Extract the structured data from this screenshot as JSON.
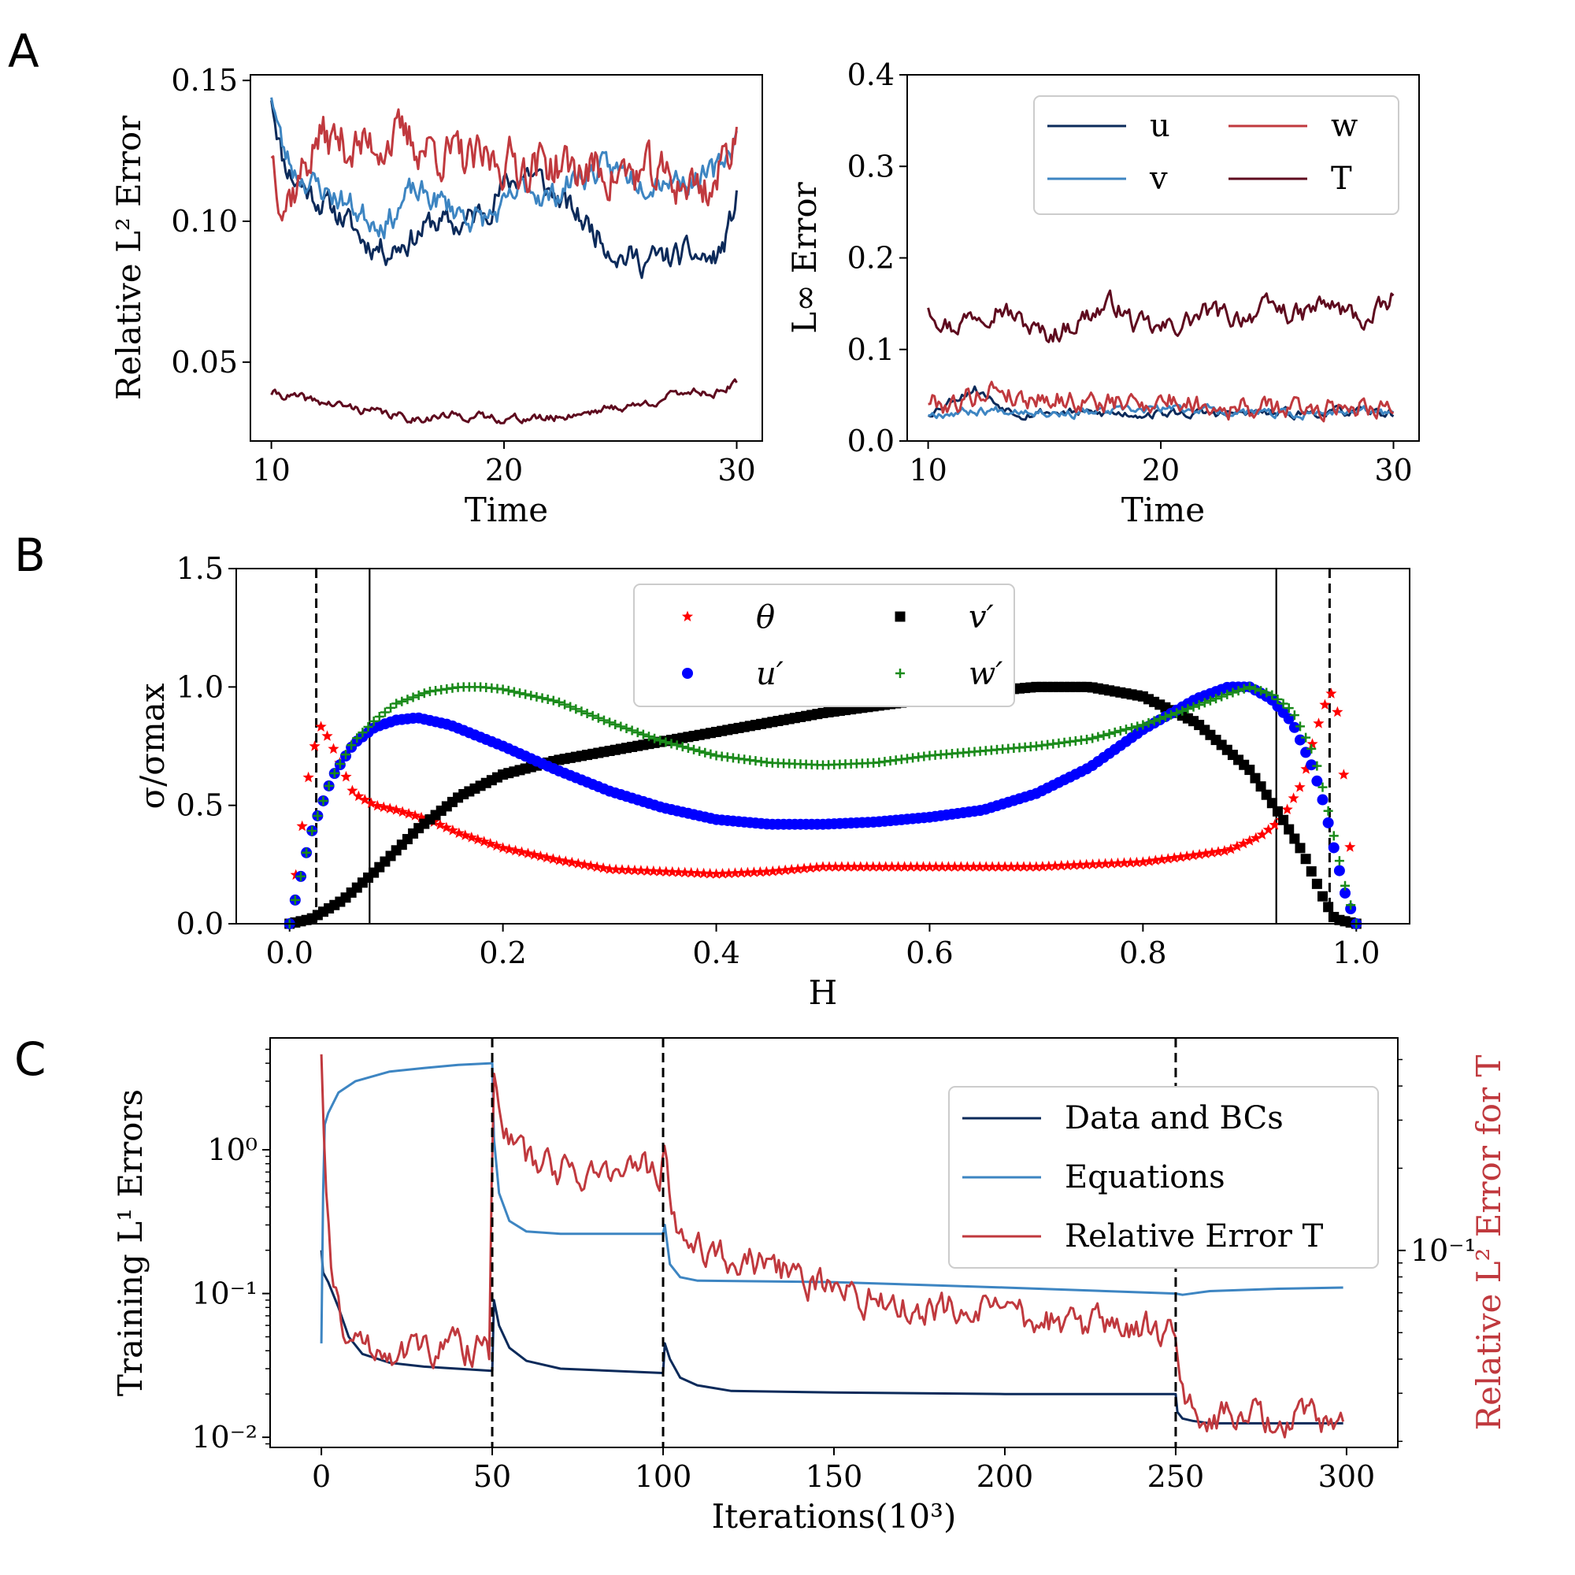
{
  "panels": {
    "a": "A",
    "b": "B",
    "c": "C"
  },
  "chart_data": [
    {
      "id": "A1",
      "type": "line",
      "xlabel": "Time",
      "ylabel": "Relative L² Error",
      "xlim": [
        9.1,
        31.1
      ],
      "ylim": [
        0.022,
        0.152
      ],
      "xticks": [
        10,
        20,
        30
      ],
      "xticklabels": [
        "10",
        "20",
        "30"
      ],
      "yticks": [
        0.05,
        0.1,
        0.15
      ],
      "yticklabels": [
        "0.05",
        "0.10",
        "0.15"
      ],
      "series": [
        {
          "name": "u",
          "color": "#0b2a5a",
          "noise": 0.004,
          "seed": 11,
          "x": [
            10,
            10.5,
            11,
            12,
            13,
            14,
            15,
            16,
            17,
            18,
            19,
            20,
            21,
            21.5,
            22,
            23,
            24,
            25,
            26,
            27,
            28,
            29,
            29.5,
            30
          ],
          "y": [
            0.145,
            0.122,
            0.115,
            0.108,
            0.102,
            0.093,
            0.09,
            0.094,
            0.1,
            0.098,
            0.103,
            0.112,
            0.118,
            0.115,
            0.11,
            0.103,
            0.096,
            0.088,
            0.086,
            0.087,
            0.088,
            0.086,
            0.092,
            0.108
          ]
        },
        {
          "name": "v",
          "color": "#3d85c2",
          "noise": 0.004,
          "seed": 23,
          "x": [
            10,
            10.5,
            11,
            12,
            13,
            14,
            15,
            16,
            17,
            18,
            19,
            20,
            21,
            22,
            23,
            24,
            25,
            26,
            27,
            28,
            29,
            30
          ],
          "y": [
            0.146,
            0.125,
            0.118,
            0.112,
            0.108,
            0.102,
            0.1,
            0.11,
            0.108,
            0.104,
            0.1,
            0.104,
            0.113,
            0.108,
            0.115,
            0.118,
            0.118,
            0.115,
            0.116,
            0.115,
            0.116,
            0.13
          ]
        },
        {
          "name": "w",
          "color": "#c0393e",
          "noise": 0.007,
          "seed": 37,
          "x": [
            10,
            10.5,
            11,
            12,
            13,
            14,
            15,
            16,
            17,
            18,
            19,
            20,
            21,
            22,
            23,
            24,
            25,
            26,
            27,
            28,
            29,
            30
          ],
          "y": [
            0.126,
            0.108,
            0.112,
            0.13,
            0.128,
            0.126,
            0.13,
            0.128,
            0.126,
            0.122,
            0.12,
            0.122,
            0.12,
            0.121,
            0.118,
            0.118,
            0.117,
            0.116,
            0.115,
            0.113,
            0.112,
            0.133
          ]
        },
        {
          "name": "T",
          "color": "#5e0a1e",
          "noise": 0.0012,
          "seed": 41,
          "x": [
            10,
            12,
            14,
            16,
            18,
            20,
            22,
            24,
            26,
            28,
            29,
            30
          ],
          "y": [
            0.039,
            0.036,
            0.033,
            0.03,
            0.031,
            0.03,
            0.03,
            0.033,
            0.035,
            0.04,
            0.039,
            0.042
          ]
        }
      ]
    },
    {
      "id": "A2",
      "type": "line",
      "xlabel": "Time",
      "ylabel": "L∞ Error",
      "xlim": [
        9.1,
        31.1
      ],
      "ylim": [
        0,
        0.4
      ],
      "xticks": [
        10,
        20,
        30
      ],
      "xticklabels": [
        "10",
        "20",
        "30"
      ],
      "yticks": [
        0.0,
        0.1,
        0.2,
        0.3,
        0.4
      ],
      "yticklabels": [
        "0.0",
        "0.1",
        "0.2",
        "0.3",
        "0.4"
      ],
      "legend": {
        "position": "top-right",
        "columns": 2,
        "entries": [
          "u",
          "v",
          "w",
          "T"
        ]
      },
      "series": [
        {
          "name": "u",
          "color": "#0b2a5a",
          "noise": 0.004,
          "seed": 53,
          "x": [
            10,
            11,
            12,
            13,
            14,
            15,
            17,
            20,
            23,
            26,
            28,
            30
          ],
          "y": [
            0.03,
            0.045,
            0.058,
            0.04,
            0.03,
            0.032,
            0.03,
            0.03,
            0.03,
            0.03,
            0.032,
            0.03
          ]
        },
        {
          "name": "v",
          "color": "#3d85c2",
          "noise": 0.004,
          "seed": 67,
          "x": [
            10,
            12,
            14,
            16,
            18,
            20,
            22,
            24,
            26,
            28,
            30
          ],
          "y": [
            0.03,
            0.033,
            0.035,
            0.03,
            0.032,
            0.035,
            0.035,
            0.03,
            0.028,
            0.035,
            0.03
          ]
        },
        {
          "name": "w",
          "color": "#c0393e",
          "noise": 0.01,
          "seed": 79,
          "x": [
            10,
            11,
            12,
            13,
            14,
            15,
            16,
            18,
            20,
            22,
            24,
            26,
            28,
            30
          ],
          "y": [
            0.045,
            0.04,
            0.05,
            0.06,
            0.045,
            0.05,
            0.045,
            0.04,
            0.045,
            0.04,
            0.035,
            0.035,
            0.04,
            0.04
          ]
        },
        {
          "name": "T",
          "color": "#5e0a1e",
          "noise": 0.01,
          "seed": 97,
          "x": [
            10,
            11,
            12,
            13,
            14,
            15,
            16,
            17,
            18,
            19,
            20,
            21,
            22,
            23,
            24,
            25,
            26,
            27,
            28,
            29,
            30
          ],
          "y": [
            0.15,
            0.125,
            0.14,
            0.15,
            0.13,
            0.115,
            0.125,
            0.14,
            0.15,
            0.125,
            0.12,
            0.13,
            0.14,
            0.135,
            0.14,
            0.145,
            0.135,
            0.15,
            0.14,
            0.13,
            0.155
          ]
        }
      ]
    },
    {
      "id": "B",
      "type": "scatter",
      "xlabel": "H",
      "ylabel": "σ/σmax",
      "xlim": [
        -0.05,
        1.05
      ],
      "ylim": [
        0,
        1.5
      ],
      "xticks": [
        0.0,
        0.2,
        0.4,
        0.6,
        0.8,
        1.0
      ],
      "xticklabels": [
        "0.0",
        "0.2",
        "0.4",
        "0.6",
        "0.8",
        "1.0"
      ],
      "yticks": [
        0.0,
        0.5,
        1.0,
        1.5
      ],
      "yticklabels": [
        "0.0",
        "0.5",
        "1.0",
        "1.5"
      ],
      "vlines": [
        {
          "x": 0.025,
          "style": "dashed"
        },
        {
          "x": 0.975,
          "style": "dashed"
        },
        {
          "x": 0.075,
          "style": "solid"
        },
        {
          "x": 0.925,
          "style": "solid"
        }
      ],
      "legend": {
        "position": "upper center",
        "columns": 2,
        "entries": [
          "θ",
          "v′",
          "u′",
          "w′"
        ]
      },
      "series": [
        {
          "name": "θ",
          "color": "#ff0000",
          "marker": "star",
          "x": [
            0,
            0.01,
            0.02,
            0.03,
            0.04,
            0.06,
            0.08,
            0.1,
            0.13,
            0.16,
            0.2,
            0.25,
            0.3,
            0.35,
            0.4,
            0.45,
            0.5,
            0.55,
            0.6,
            0.65,
            0.7,
            0.75,
            0.8,
            0.85,
            0.88,
            0.91,
            0.93,
            0.95,
            0.96,
            0.97,
            0.98,
            0.99,
            1.0
          ],
          "y": [
            0,
            0.35,
            0.7,
            0.84,
            0.75,
            0.55,
            0.5,
            0.48,
            0.44,
            0.38,
            0.32,
            0.27,
            0.23,
            0.22,
            0.21,
            0.22,
            0.24,
            0.24,
            0.24,
            0.24,
            0.24,
            0.25,
            0.26,
            0.29,
            0.31,
            0.37,
            0.44,
            0.6,
            0.78,
            0.92,
            1.0,
            0.55,
            0
          ]
        },
        {
          "name": "v′",
          "color": "#000000",
          "marker": "square",
          "x": [
            0,
            0.02,
            0.05,
            0.08,
            0.12,
            0.16,
            0.2,
            0.25,
            0.3,
            0.35,
            0.4,
            0.45,
            0.5,
            0.55,
            0.6,
            0.65,
            0.7,
            0.75,
            0.8,
            0.85,
            0.9,
            0.93,
            0.95,
            0.97,
            0.98,
            1.0
          ],
          "y": [
            0,
            0.02,
            0.1,
            0.22,
            0.4,
            0.54,
            0.63,
            0.69,
            0.73,
            0.77,
            0.81,
            0.85,
            0.89,
            0.92,
            0.95,
            0.98,
            1.0,
            1.0,
            0.96,
            0.85,
            0.65,
            0.45,
            0.3,
            0.1,
            0.02,
            0
          ]
        },
        {
          "name": "u′",
          "color": "#0000ff",
          "marker": "circle",
          "x": [
            0,
            0.02,
            0.04,
            0.06,
            0.08,
            0.1,
            0.12,
            0.15,
            0.2,
            0.25,
            0.3,
            0.35,
            0.4,
            0.45,
            0.5,
            0.55,
            0.6,
            0.65,
            0.7,
            0.75,
            0.8,
            0.85,
            0.88,
            0.9,
            0.92,
            0.94,
            0.96,
            0.97,
            0.98,
            0.99,
            1.0
          ],
          "y": [
            0,
            0.38,
            0.62,
            0.76,
            0.83,
            0.86,
            0.87,
            0.84,
            0.75,
            0.65,
            0.56,
            0.49,
            0.44,
            0.42,
            0.42,
            0.43,
            0.45,
            0.48,
            0.55,
            0.66,
            0.82,
            0.95,
            1.0,
            1.0,
            0.95,
            0.85,
            0.65,
            0.5,
            0.3,
            0.12,
            0
          ]
        },
        {
          "name": "w′",
          "color": "#1a8a1a",
          "marker": "plus",
          "x": [
            0,
            0.02,
            0.04,
            0.06,
            0.08,
            0.1,
            0.13,
            0.16,
            0.18,
            0.2,
            0.25,
            0.3,
            0.35,
            0.4,
            0.45,
            0.5,
            0.55,
            0.6,
            0.65,
            0.7,
            0.75,
            0.8,
            0.85,
            0.88,
            0.9,
            0.92,
            0.94,
            0.96,
            0.97,
            0.98,
            0.99,
            1.0
          ],
          "y": [
            0,
            0.38,
            0.62,
            0.77,
            0.86,
            0.93,
            0.98,
            1.0,
            1.0,
            0.99,
            0.94,
            0.85,
            0.77,
            0.71,
            0.68,
            0.67,
            0.68,
            0.71,
            0.73,
            0.75,
            0.78,
            0.84,
            0.92,
            0.97,
            1.0,
            0.97,
            0.9,
            0.72,
            0.55,
            0.35,
            0.15,
            0
          ]
        }
      ]
    },
    {
      "id": "C",
      "type": "line",
      "xlabel": "Iterations(10³)",
      "ylabel": "Training L¹ Errors",
      "ylabel_right": "Relative L² Error for T",
      "xlim": [
        -15,
        315
      ],
      "ylog": true,
      "ylim": [
        0.0085,
        6
      ],
      "ylim_right": [
        0.019,
        0.6
      ],
      "xticks": [
        0,
        50,
        100,
        150,
        200,
        250,
        300
      ],
      "xticklabels": [
        "0",
        "50",
        "100",
        "150",
        "200",
        "250",
        "300"
      ],
      "yticks": [
        0.01,
        0.1,
        1
      ],
      "yticklabels": [
        "10⁻²",
        "10⁻¹",
        "10⁰"
      ],
      "yticks_right": [
        0.1
      ],
      "yticklabels_right": [
        "10⁻¹"
      ],
      "vlines": [
        {
          "x": 50,
          "style": "dashed"
        },
        {
          "x": 100,
          "style": "dashed"
        },
        {
          "x": 250,
          "style": "dashed"
        }
      ],
      "legend": {
        "position": "upper right",
        "entries": [
          "Data and BCs",
          "Equations",
          "Relative Error T"
        ]
      },
      "series": [
        {
          "name": "Data and BCs",
          "color": "#0b2a5a",
          "axis": "left",
          "noise": 0,
          "x": [
            0,
            0.5,
            2,
            5,
            8,
            12,
            20,
            30,
            49.9,
            50,
            50.5,
            52,
            55,
            60,
            70,
            99.9,
            100,
            100.5,
            102,
            105,
            110,
            120,
            150,
            200,
            249.9,
            250,
            250.5,
            252,
            255,
            260,
            280,
            299
          ],
          "y": [
            0.2,
            0.14,
            0.12,
            0.08,
            0.05,
            0.038,
            0.033,
            0.031,
            0.029,
            0.029,
            0.09,
            0.06,
            0.042,
            0.034,
            0.03,
            0.028,
            0.028,
            0.045,
            0.035,
            0.026,
            0.023,
            0.021,
            0.0205,
            0.02,
            0.02,
            0.02,
            0.015,
            0.0135,
            0.013,
            0.0125,
            0.0125,
            0.0125
          ]
        },
        {
          "name": "Equations",
          "color": "#3d85c2",
          "axis": "left",
          "noise": 0,
          "x": [
            0,
            0.5,
            1,
            2,
            5,
            10,
            20,
            30,
            40,
            49.9,
            50,
            50.5,
            52,
            55,
            60,
            70,
            99.9,
            100,
            100.5,
            102,
            105,
            110,
            150,
            200,
            249.9,
            250,
            252,
            260,
            280,
            299
          ],
          "y": [
            0.045,
            0.5,
            1.5,
            1.8,
            2.5,
            3.0,
            3.5,
            3.7,
            3.9,
            4.0,
            4.0,
            1.2,
            0.5,
            0.32,
            0.27,
            0.26,
            0.26,
            0.26,
            0.3,
            0.16,
            0.13,
            0.123,
            0.12,
            0.11,
            0.1,
            0.1,
            0.098,
            0.104,
            0.108,
            0.11
          ]
        },
        {
          "name": "Relative Error T",
          "color": "#c0393e",
          "axis": "right",
          "noise": 0.12,
          "logNoise": true,
          "seed": 131,
          "x": [
            0,
            1,
            3,
            6,
            10,
            20,
            30,
            40,
            49.5,
            50.5,
            52,
            55,
            60,
            70,
            80,
            90,
            99,
            100.5,
            102,
            105,
            110,
            120,
            140,
            160,
            180,
            200,
            220,
            240,
            249,
            250.5,
            252,
            255,
            260,
            280,
            299
          ],
          "y": [
            0.55,
            0.2,
            0.075,
            0.055,
            0.045,
            0.045,
            0.043,
            0.045,
            0.043,
            0.5,
            0.35,
            0.25,
            0.21,
            0.2,
            0.195,
            0.195,
            0.2,
            0.23,
            0.13,
            0.115,
            0.105,
            0.095,
            0.08,
            0.067,
            0.061,
            0.057,
            0.054,
            0.051,
            0.048,
            0.042,
            0.03,
            0.026,
            0.025,
            0.024,
            0.0235
          ]
        }
      ]
    }
  ]
}
